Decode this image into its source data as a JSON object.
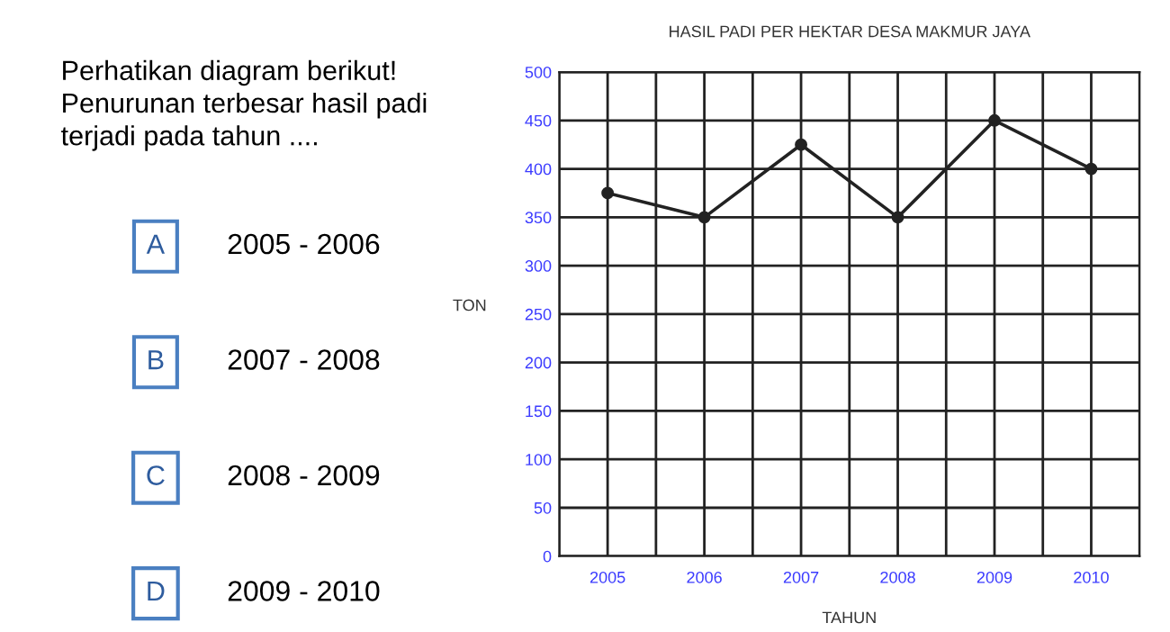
{
  "chart_data": {
    "type": "line",
    "title": "HASIL PADI PER HEKTAR DESA MAKMUR JAYA",
    "xlabel": "TAHUN",
    "ylabel": "TON",
    "categories": [
      "2005",
      "2006",
      "2007",
      "2008",
      "2009",
      "2010"
    ],
    "series": [
      {
        "color": "#222222",
        "values": [
          375,
          350,
          425,
          350,
          450,
          400
        ]
      }
    ],
    "ylim": [
      0,
      500
    ],
    "yticks": [
      0,
      50,
      100,
      150,
      200,
      250,
      300,
      350,
      400,
      450,
      500
    ],
    "grid": true,
    "marker": "circle",
    "line_style": "solid",
    "annotations": [
      "Perhatikan diagram berikut!\nPenurunan terbesar hasil padi\nterjadi pada tahun ....",
      "A",
      "2005 - 2006",
      "B",
      "2007 - 2008",
      "C",
      "2008 - 2009",
      "D",
      "2009 - 2010"
    ]
  }
}
